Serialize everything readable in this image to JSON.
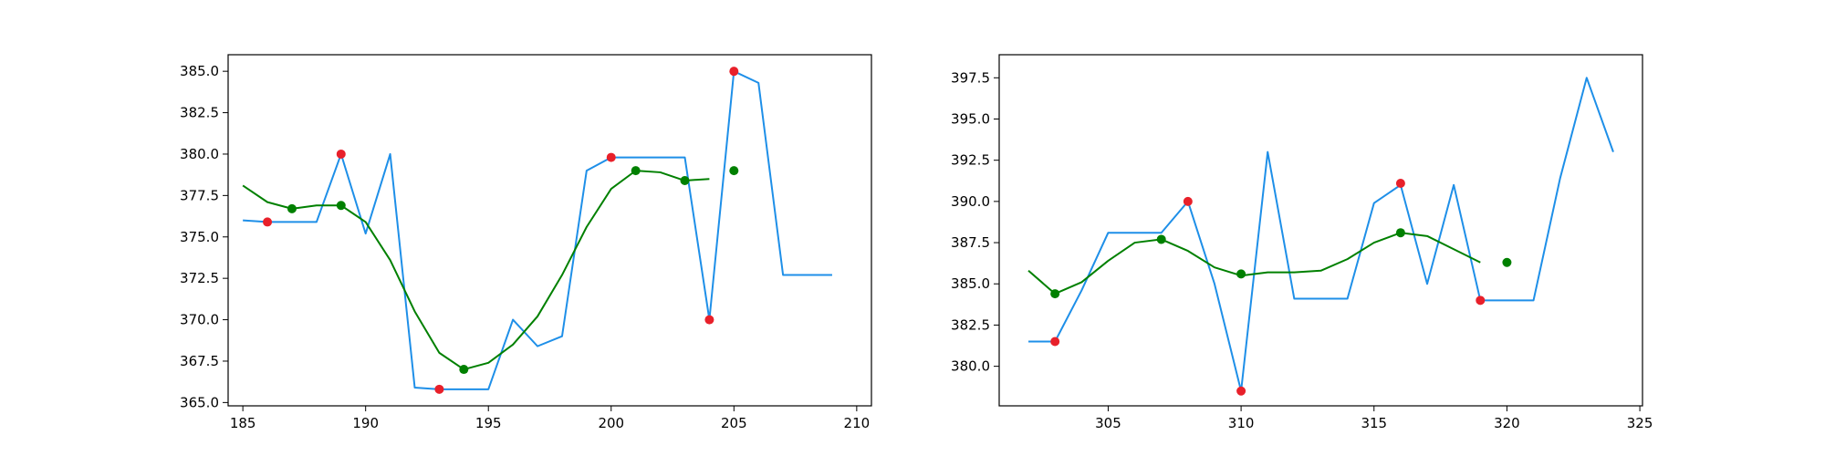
{
  "chart_data": [
    {
      "type": "line",
      "title": "",
      "xlabel": "",
      "ylabel": "",
      "xlim": [
        184.4,
        210.6
      ],
      "ylim": [
        364.8,
        386.0
      ],
      "xticks": [
        185,
        190,
        195,
        200,
        205,
        210
      ],
      "yticks": [
        365.0,
        367.5,
        370.0,
        372.5,
        375.0,
        377.5,
        380.0,
        382.5,
        385.0
      ],
      "grid": false,
      "colors": {
        "series": "#1e8fe8",
        "smooth": "#008000",
        "red_points": "#e8202a",
        "green_points": "#008000"
      },
      "series": [
        {
          "x": [
            185,
            186,
            187,
            188,
            189,
            190,
            191,
            192,
            193,
            194,
            195,
            196,
            197,
            198,
            199,
            200,
            201,
            202,
            203,
            204,
            205,
            206,
            207,
            208,
            209
          ],
          "y": [
            376.0,
            375.9,
            375.9,
            375.9,
            380.0,
            375.2,
            380.0,
            365.9,
            365.8,
            365.8,
            365.8,
            370.0,
            368.4,
            369.0,
            379.0,
            379.8,
            379.8,
            379.8,
            379.8,
            370.0,
            385.0,
            384.3,
            372.7,
            372.7,
            372.7
          ]
        },
        {
          "x": [
            185,
            186,
            187,
            188,
            189,
            190,
            191,
            192,
            193,
            194,
            195,
            196,
            197,
            198,
            199,
            200,
            201,
            202,
            203,
            204
          ],
          "y": [
            378.1,
            377.1,
            376.7,
            376.9,
            376.9,
            375.9,
            373.6,
            370.5,
            368.0,
            367.0,
            367.4,
            368.5,
            370.2,
            372.7,
            375.6,
            377.9,
            379.0,
            378.9,
            378.4,
            378.5
          ]
        },
        {
          "x": [
            186,
            189,
            193,
            200,
            204,
            205
          ],
          "y": [
            375.9,
            380.0,
            365.8,
            379.8,
            370.0,
            385.0
          ]
        },
        {
          "x": [
            187,
            189,
            194,
            201,
            203,
            205
          ],
          "y": [
            376.7,
            376.9,
            367.0,
            379.0,
            378.4,
            379.0
          ]
        }
      ]
    },
    {
      "type": "line",
      "title": "",
      "xlabel": "",
      "ylabel": "",
      "xlim": [
        300.9,
        325.1
      ],
      "ylim": [
        377.6,
        398.9
      ],
      "xticks": [
        305,
        310,
        315,
        320,
        325
      ],
      "yticks": [
        380.0,
        382.5,
        385.0,
        387.5,
        390.0,
        392.5,
        395.0,
        397.5
      ],
      "grid": false,
      "colors": {
        "series": "#1e8fe8",
        "smooth": "#008000",
        "red_points": "#e8202a",
        "green_points": "#008000"
      },
      "series": [
        {
          "x": [
            302,
            303,
            304,
            305,
            306,
            307,
            308,
            309,
            310,
            311,
            312,
            313,
            314,
            315,
            316,
            317,
            318,
            319,
            320,
            321,
            322,
            323,
            324
          ],
          "y": [
            381.5,
            381.5,
            384.6,
            388.1,
            388.1,
            388.1,
            390.0,
            385.0,
            378.5,
            393.0,
            384.1,
            384.1,
            384.1,
            389.9,
            391.0,
            385.0,
            391.0,
            384.0,
            384.0,
            384.0,
            391.4,
            397.5,
            393.0
          ]
        },
        {
          "x": [
            302,
            303,
            304,
            305,
            306,
            307,
            308,
            309,
            310,
            311,
            312,
            313,
            314,
            315,
            316,
            317,
            318,
            319
          ],
          "y": [
            385.8,
            384.4,
            385.1,
            386.4,
            387.5,
            387.7,
            387.0,
            386.0,
            385.5,
            385.7,
            385.7,
            385.8,
            386.5,
            387.5,
            388.1,
            387.9,
            387.1,
            386.3
          ]
        },
        {
          "x": [
            303,
            308,
            310,
            316,
            319
          ],
          "y": [
            381.5,
            390.0,
            378.5,
            391.1,
            384.0
          ]
        },
        {
          "x": [
            303,
            307,
            310,
            316,
            320
          ],
          "y": [
            384.4,
            387.7,
            385.6,
            388.1,
            386.3
          ]
        }
      ]
    }
  ]
}
